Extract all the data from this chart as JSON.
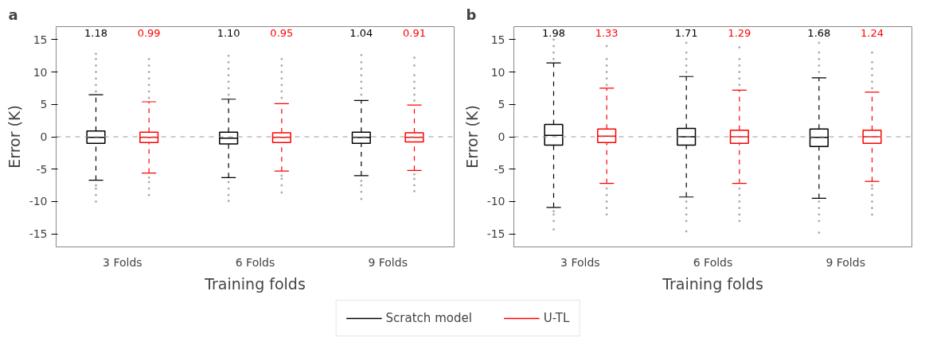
{
  "chart_data": [
    {
      "type": "box",
      "title": "a",
      "xlabel": "Training folds",
      "ylabel": "Error (K)",
      "categories": [
        "3 Folds",
        "6 Folds",
        "9 Folds"
      ],
      "ylim": [
        -17,
        17
      ],
      "yticks": [
        -15,
        -10,
        -5,
        0,
        5,
        10,
        15
      ],
      "grid": false,
      "legend": "bottom",
      "ref_lines": [
        {
          "axis": "y",
          "value": 0,
          "color": "#999999",
          "line_style": "dashed"
        }
      ],
      "series": [
        {
          "name": "Scratch model",
          "color": "#000000",
          "value_labels": [
            "1.18",
            "1.10",
            "1.04"
          ],
          "boxes": [
            {
              "low": -6.7,
              "q1": -1.0,
              "median": -0.1,
              "q3": 0.9,
              "high": 6.5,
              "outliers": [
                -10,
                -9,
                -8,
                -7.5,
                7,
                8,
                9,
                10,
                11,
                12,
                12.8
              ]
            },
            {
              "low": -6.3,
              "q1": -1.1,
              "median": -0.2,
              "q3": 0.7,
              "high": 5.8,
              "outliers": [
                -9.9,
                -9,
                -8,
                -7,
                6.5,
                7.5,
                8.5,
                9.5,
                10.5,
                11.5,
                12.5
              ]
            },
            {
              "low": -6.0,
              "q1": -1.0,
              "median": -0.1,
              "q3": 0.7,
              "high": 5.6,
              "outliers": [
                -9.6,
                -8.5,
                -7.5,
                -6.8,
                6.5,
                7.5,
                8.5,
                9.5,
                10.5,
                11.5,
                12.6
              ]
            }
          ]
        },
        {
          "name": "U-TL",
          "color": "#ff0000",
          "value_labels": [
            "0.99",
            "0.95",
            "0.91"
          ],
          "boxes": [
            {
              "low": -5.6,
              "q1": -0.9,
              "median": -0.1,
              "q3": 0.7,
              "high": 5.4,
              "outliers": [
                -9,
                -8,
                -7,
                -6.3,
                6,
                7,
                8,
                9,
                10,
                11,
                12
              ]
            },
            {
              "low": -5.3,
              "q1": -0.9,
              "median": -0.1,
              "q3": 0.6,
              "high": 5.1,
              "outliers": [
                -8.6,
                -7.5,
                -6.5,
                -6,
                6,
                7,
                8,
                9,
                10,
                11,
                12
              ]
            },
            {
              "low": -5.2,
              "q1": -0.8,
              "median": -0.1,
              "q3": 0.6,
              "high": 4.9,
              "outliers": [
                -8.4,
                -7.5,
                -6.5,
                -5.8,
                5.6,
                6.5,
                7.5,
                8.5,
                9.5,
                11,
                12.2
              ]
            }
          ]
        }
      ]
    },
    {
      "type": "box",
      "title": "b",
      "xlabel": "Training folds",
      "ylabel": "Error (K)",
      "categories": [
        "3 Folds",
        "6 Folds",
        "9 Folds"
      ],
      "ylim": [
        -17,
        17
      ],
      "yticks": [
        -15,
        -10,
        -5,
        0,
        5,
        10,
        15
      ],
      "grid": false,
      "ref_lines": [
        {
          "axis": "y",
          "value": 0,
          "color": "#999999",
          "line_style": "dashed"
        }
      ],
      "series": [
        {
          "color": "#000000",
          "value_labels": [
            "1.98",
            "1.71",
            "1.68"
          ],
          "boxes": [
            {
              "low": -10.9,
              "q1": -1.3,
              "median": 0.2,
              "q3": 1.9,
              "high": 11.4,
              "outliers": [
                -14.3,
                -13,
                -12,
                -11.5,
                12,
                13,
                14,
                15
              ]
            },
            {
              "low": -9.3,
              "q1": -1.3,
              "median": 0.0,
              "q3": 1.3,
              "high": 9.3,
              "outliers": [
                -14.6,
                -13,
                -12,
                -11,
                -10,
                10,
                11,
                12,
                13,
                14.5
              ]
            },
            {
              "low": -9.5,
              "q1": -1.5,
              "median": -0.1,
              "q3": 1.2,
              "high": 9.1,
              "outliers": [
                -14.8,
                -13,
                -12,
                -11,
                -10,
                10,
                11,
                12,
                13,
                14.5
              ]
            }
          ]
        },
        {
          "color": "#ff0000",
          "value_labels": [
            "1.33",
            "1.29",
            "1.24"
          ],
          "boxes": [
            {
              "low": -7.2,
              "q1": -0.9,
              "median": 0.1,
              "q3": 1.2,
              "high": 7.5,
              "outliers": [
                -12,
                -11,
                -10,
                -9,
                -8,
                8,
                9,
                10,
                11,
                12,
                14
              ]
            },
            {
              "low": -7.2,
              "q1": -1.0,
              "median": 0.0,
              "q3": 1.0,
              "high": 7.2,
              "outliers": [
                -13,
                -12,
                -11,
                -10,
                -9,
                -8,
                8,
                9,
                10,
                11,
                12,
                13.8
              ]
            },
            {
              "low": -6.9,
              "q1": -1.0,
              "median": 0.0,
              "q3": 1.0,
              "high": 6.9,
              "outliers": [
                -12,
                -11,
                -10,
                -9,
                -8,
                -7.5,
                7.5,
                8.5,
                9.5,
                10.5,
                11.5,
                13
              ]
            }
          ]
        }
      ]
    }
  ]
}
